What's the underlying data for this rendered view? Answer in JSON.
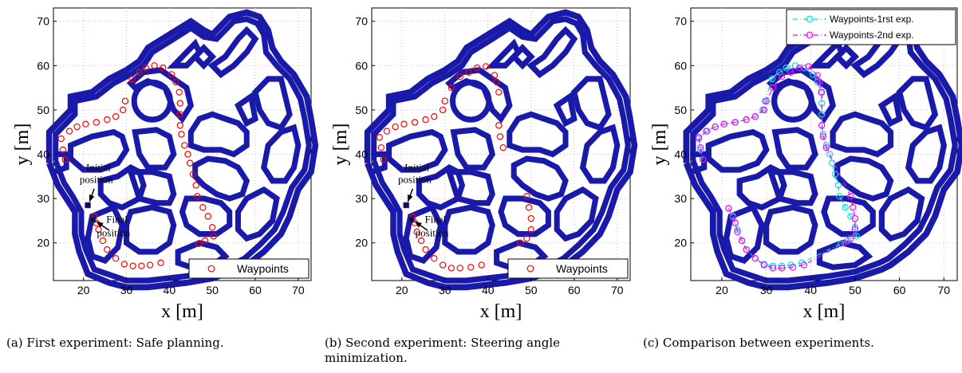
{
  "chart_data": [
    {
      "type": "scatter",
      "panel": "a",
      "xlabel": "x [m]",
      "ylabel": "y [m]",
      "xlim": [
        13,
        73
      ],
      "ylim": [
        11.5,
        73
      ],
      "xticks": [
        20,
        30,
        40,
        50,
        60,
        70
      ],
      "yticks": [
        20,
        30,
        40,
        50,
        60,
        70
      ],
      "grid": true,
      "legend_position": "bottom-right",
      "series": [
        {
          "name": "Waypoints",
          "marker": "circle",
          "color": "#ff0000",
          "x": [
            15.7,
            15.2,
            14.8,
            16.7,
            18.5,
            20.5,
            23.0,
            25.5,
            27.5,
            29.2,
            29.7,
            31.3,
            33.0,
            34.5,
            36.5,
            38.5,
            40.5,
            41.5,
            42.3,
            42.5,
            42.5,
            42.5,
            42.8,
            43.5,
            44.3,
            44.8,
            45.5,
            46.2,
            46.5,
            47.8,
            49.0,
            50.0,
            50.3,
            48.3,
            46.8,
            38.0,
            35.5,
            33.5,
            31.5,
            29.5,
            27.5,
            25.5,
            24.5,
            23.5,
            23.0,
            22.5
          ],
          "y": [
            38.8,
            41.0,
            43.5,
            45.2,
            46.2,
            46.8,
            47.2,
            47.8,
            48.5,
            50.0,
            52.0,
            57.0,
            58.5,
            59.5,
            60.0,
            59.5,
            58.0,
            56.3,
            54.0,
            51.5,
            49.0,
            46.5,
            44.5,
            42.0,
            40.0,
            38.0,
            35.5,
            33.0,
            30.5,
            28.0,
            26.0,
            23.5,
            21.5,
            20.5,
            19.8,
            15.5,
            15.0,
            14.8,
            14.8,
            15.2,
            16.5,
            18.5,
            20.5,
            23.0,
            24.5,
            26.0
          ]
        },
        {
          "name": "Vehicle",
          "marker": "car",
          "color": "#1a1a8a",
          "x": [
            21.0,
            22.2
          ],
          "y": [
            28.5,
            25.2
          ]
        }
      ],
      "annotations": [
        {
          "text": "Initial",
          "x": 23.5,
          "y": 36.2
        },
        {
          "text": "position",
          "x": 23.0,
          "y": 33.5
        },
        {
          "text": "Final",
          "x": 27.8,
          "y": 24.5
        },
        {
          "text": "position",
          "x": 27.0,
          "y": 21.5
        }
      ]
    },
    {
      "type": "scatter",
      "panel": "b",
      "xlabel": "x [m]",
      "ylabel": "y [m]",
      "xlim": [
        13,
        73
      ],
      "ylim": [
        11.5,
        73
      ],
      "xticks": [
        20,
        30,
        40,
        50,
        60,
        70
      ],
      "yticks": [
        20,
        30,
        40,
        50,
        60,
        70
      ],
      "grid": true,
      "legend_position": "bottom-right",
      "series": [
        {
          "name": "Waypoints",
          "marker": "circle",
          "color": "#ff0000",
          "x": [
            15.7,
            15.2,
            14.8,
            16.5,
            18.5,
            20.5,
            23.0,
            25.5,
            27.5,
            29.5,
            30.0,
            31.5,
            33.5,
            35.5,
            37.5,
            39.5,
            41.5,
            42.0,
            42.5,
            42.5,
            42.8,
            43.5,
            49.0,
            49.5,
            50.0,
            50.0,
            49.0,
            47.5,
            38.5,
            36.0,
            33.5,
            31.5,
            29.5,
            27.5,
            25.5,
            24.5,
            23.5,
            23.0,
            22.5
          ],
          "y": [
            38.8,
            41.5,
            43.8,
            45.2,
            46.2,
            46.8,
            47.2,
            47.8,
            48.5,
            50.0,
            52.0,
            55.0,
            57.5,
            58.5,
            59.5,
            59.8,
            57.8,
            56.3,
            54.0,
            46.5,
            44.0,
            41.5,
            30.5,
            28.0,
            25.5,
            23.0,
            21.0,
            20.0,
            15.0,
            14.5,
            14.3,
            14.3,
            15.0,
            16.5,
            18.5,
            20.5,
            22.5,
            24.5,
            25.8
          ]
        },
        {
          "name": "Vehicle",
          "marker": "car",
          "color": "#1a1a8a",
          "x": [
            21.0,
            22.2
          ],
          "y": [
            28.5,
            25.2
          ]
        }
      ],
      "annotations": [
        {
          "text": "Initial",
          "x": 23.5,
          "y": 36.2
        },
        {
          "text": "position",
          "x": 23.0,
          "y": 33.5
        },
        {
          "text": "Final",
          "x": 27.8,
          "y": 24.5
        },
        {
          "text": "position",
          "x": 27.0,
          "y": 21.5
        }
      ]
    },
    {
      "type": "line",
      "panel": "c",
      "xlabel": "x [m]",
      "ylabel": "y [m]",
      "xlim": [
        13,
        73
      ],
      "ylim": [
        11.5,
        73
      ],
      "xticks": [
        20,
        30,
        40,
        50,
        60,
        70
      ],
      "yticks": [
        20,
        30,
        40,
        50,
        60,
        70
      ],
      "grid": true,
      "legend_position": "top-right",
      "series": [
        {
          "name": "Waypoints-1rst exp.",
          "marker": "circle",
          "line": "dash-dot",
          "color": "#00e5e5",
          "x": [
            22.5,
            23.0,
            23.5,
            24.5,
            25.5,
            27.5,
            29.5,
            31.5,
            33.5,
            35.5,
            38.0,
            46.8,
            48.3,
            50.3,
            50.0,
            49.0,
            47.8,
            46.5,
            46.2,
            45.5,
            44.8,
            44.3,
            43.5,
            42.8,
            42.5,
            42.5,
            42.5,
            42.3,
            41.5,
            40.5,
            38.5,
            36.5,
            34.5,
            33.0,
            31.3,
            29.7,
            29.2,
            27.5,
            25.5,
            23.0,
            20.5,
            18.5,
            16.7,
            14.8,
            15.2,
            15.7
          ],
          "y": [
            26.0,
            24.5,
            23.0,
            20.5,
            18.5,
            16.5,
            15.2,
            14.8,
            14.8,
            15.0,
            15.5,
            19.8,
            20.5,
            21.5,
            23.5,
            26.0,
            28.0,
            30.5,
            33.0,
            35.5,
            38.0,
            40.0,
            42.0,
            44.5,
            46.5,
            49.0,
            51.5,
            54.0,
            56.3,
            58.0,
            59.5,
            60.0,
            59.5,
            58.5,
            57.0,
            52.0,
            50.0,
            48.5,
            47.8,
            47.2,
            46.8,
            46.2,
            45.2,
            43.5,
            41.0,
            38.8
          ]
        },
        {
          "name": "Waypoints-2nd exp.",
          "marker": "circle",
          "line": "dash-dot",
          "color": "#ff00ff",
          "x": [
            21.5,
            22.5,
            23.0,
            23.5,
            24.5,
            25.5,
            27.5,
            29.5,
            31.5,
            33.5,
            36.0,
            38.5,
            47.5,
            49.0,
            50.0,
            50.0,
            49.5,
            49.0,
            43.5,
            42.8,
            42.5,
            42.5,
            42.0,
            41.5,
            39.5,
            37.5,
            35.5,
            33.5,
            31.5,
            30.0,
            29.5,
            27.5,
            25.5,
            23.0,
            20.5,
            18.5,
            16.5,
            14.8,
            15.2,
            15.7
          ],
          "y": [
            27.8,
            25.8,
            24.5,
            22.5,
            20.5,
            18.5,
            16.5,
            15.0,
            14.3,
            14.3,
            14.5,
            15.0,
            20.0,
            21.0,
            23.0,
            25.5,
            28.0,
            30.5,
            41.5,
            44.0,
            46.5,
            54.0,
            56.3,
            57.8,
            59.8,
            59.5,
            58.5,
            57.5,
            55.0,
            52.0,
            50.0,
            48.5,
            47.8,
            47.2,
            46.8,
            46.2,
            45.2,
            43.8,
            41.5,
            38.8
          ]
        }
      ]
    }
  ],
  "captions": {
    "a": "(a) First experiment: Safe planning.",
    "b_line1": "(b) Second experiment: Steering angle",
    "b_line2": "minimization.",
    "c": "(c) Comparison between experiments."
  },
  "colors": {
    "map": "#1a1aaa",
    "grid": "#bdbdbd",
    "waypoint": "#ff0000"
  }
}
